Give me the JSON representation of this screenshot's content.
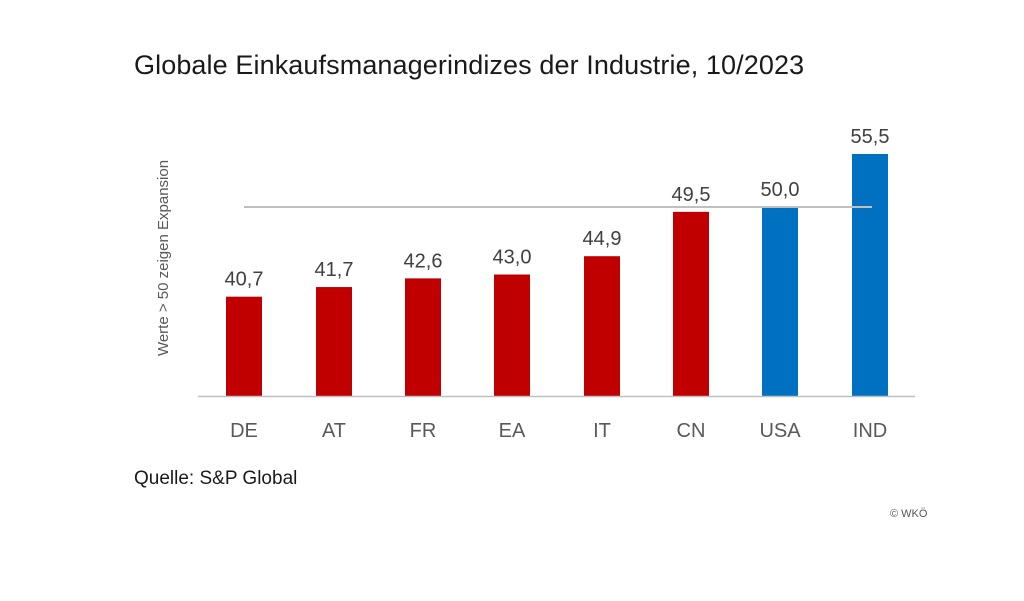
{
  "header": {
    "title": "Globale Einkaufsmanagerindizes der Industrie, 10/2023"
  },
  "footer": {
    "source": "Quelle: S&P Global",
    "copyright": "© WKÖ"
  },
  "colors": {
    "red": "#c00000",
    "blue": "#0070c0",
    "reference_line": "#bfbfbf",
    "axis": "#bfbfbf"
  },
  "chart_data": {
    "type": "bar",
    "title": "Globale Einkaufsmanagerindizes der Industrie, 10/2023",
    "ylabel": "Werte > 50 zeigen Expansion",
    "xlabel": "",
    "categories": [
      "DE",
      "AT",
      "FR",
      "EA",
      "IT",
      "CN",
      "USA",
      "IND"
    ],
    "values": [
      40.7,
      41.7,
      42.6,
      43.0,
      44.9,
      49.5,
      50.0,
      55.5
    ],
    "value_labels": [
      "40,7",
      "41,7",
      "42,6",
      "43,0",
      "44,9",
      "49,5",
      "50,0",
      "55,5"
    ],
    "bar_colors": [
      "#c00000",
      "#c00000",
      "#c00000",
      "#c00000",
      "#c00000",
      "#c00000",
      "#0070c0",
      "#0070c0"
    ],
    "reference_line": 50,
    "ylim": [
      30.4,
      55.5
    ],
    "grid": false,
    "legend": "none"
  }
}
